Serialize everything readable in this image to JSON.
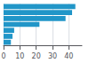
{
  "chart_data": {
    "type": "bar",
    "orientation": "horizontal",
    "categories": [
      null,
      null,
      null,
      null,
      null,
      null,
      null
    ],
    "values": [
      44,
      42,
      38,
      22,
      6.5,
      5.5,
      4.5
    ],
    "color": "#2196c8",
    "xlim": [
      0,
      48
    ],
    "xticks": [
      0,
      10,
      20,
      30,
      40
    ],
    "grid": true,
    "tick_labels": "x"
  }
}
